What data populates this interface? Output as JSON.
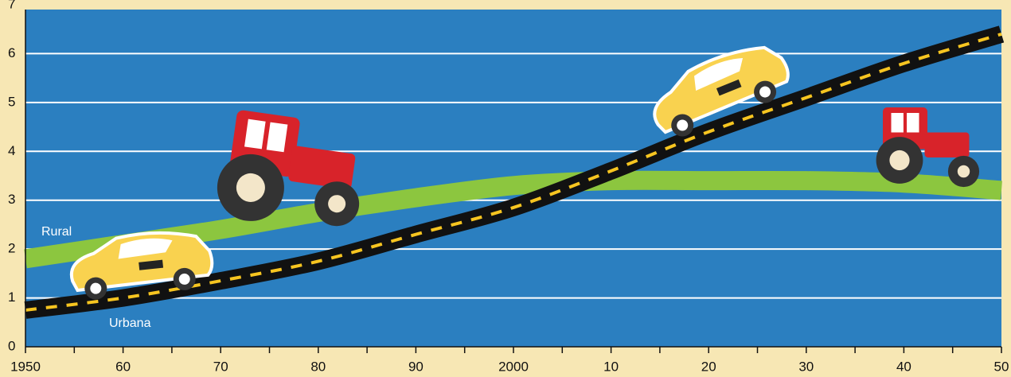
{
  "chart_data": {
    "type": "line",
    "x": [
      1950,
      1960,
      1970,
      1980,
      1990,
      2000,
      2010,
      2020,
      2030,
      2040,
      2050
    ],
    "series": [
      {
        "name": "Rural",
        "color": "#8cc63f",
        "values": [
          1.8,
          2.1,
          2.4,
          2.75,
          3.05,
          3.3,
          3.4,
          3.4,
          3.4,
          3.35,
          3.2
        ]
      },
      {
        "name": "Urbana",
        "color": "#111111",
        "values": [
          0.75,
          1.0,
          1.35,
          1.75,
          2.3,
          2.85,
          3.6,
          4.4,
          5.1,
          5.8,
          6.4
        ]
      }
    ],
    "xlim": [
      1950,
      2050
    ],
    "xticks": [
      1950,
      {
        "value": 1960,
        "label": "60"
      },
      {
        "value": 1970,
        "label": "70"
      },
      {
        "value": 1980,
        "label": "80"
      },
      {
        "value": 1990,
        "label": "90"
      },
      2000,
      {
        "value": 2010,
        "label": "10"
      },
      {
        "value": 2020,
        "label": "20"
      },
      {
        "value": 2030,
        "label": "30"
      },
      {
        "value": 2040,
        "label": "40"
      },
      {
        "value": 2050,
        "label": "50"
      }
    ],
    "xticks_minor": [
      1955,
      1965,
      1975,
      1985,
      1995,
      2005,
      2015,
      2025,
      2035,
      2045
    ],
    "ylim": [
      0,
      7
    ],
    "yticks": [
      0,
      1,
      2,
      3,
      4,
      5,
      6,
      7
    ],
    "grid": true,
    "plot_background": "#2b7fc0"
  }
}
